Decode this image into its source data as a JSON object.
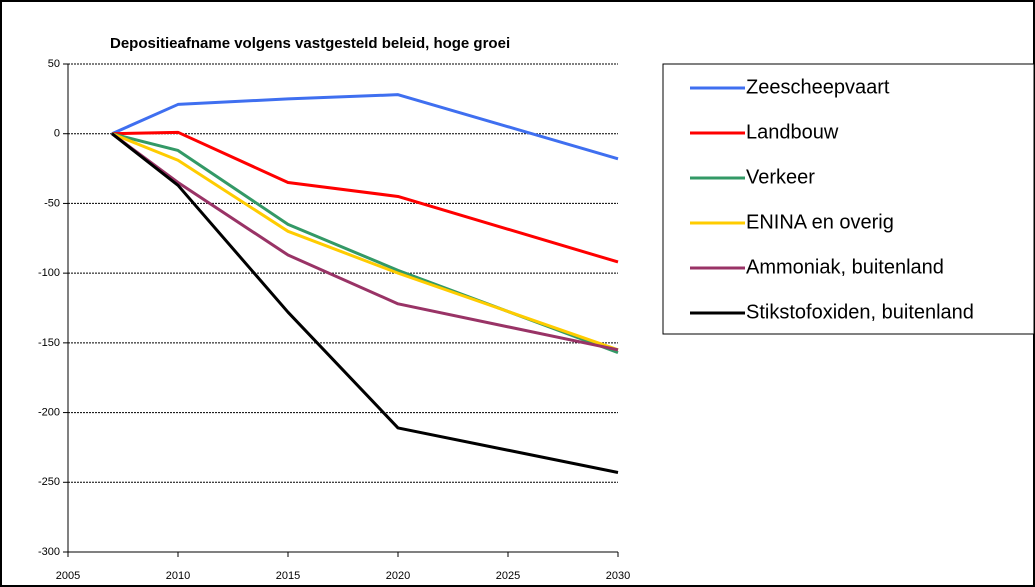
{
  "chart_data": {
    "type": "line",
    "title": "Depositieafname volgens vastgesteld beleid, hoge groei",
    "x": [
      2007,
      2010,
      2015,
      2020,
      2030
    ],
    "series": [
      {
        "name": "Zeescheepvaart",
        "color": "#3f6ff0",
        "values": [
          0,
          21,
          25,
          28,
          -18
        ]
      },
      {
        "name": "Landbouw",
        "color": "#ff0000",
        "values": [
          0,
          1,
          -35,
          -45,
          -92
        ]
      },
      {
        "name": "Verkeer",
        "color": "#339966",
        "values": [
          0,
          -12,
          -65,
          -98,
          -157
        ]
      },
      {
        "name": "ENINA en overig",
        "color": "#ffcc00",
        "values": [
          0,
          -19,
          -70,
          -100,
          -155
        ]
      },
      {
        "name": "Ammoniak, buitenland",
        "color": "#993366",
        "values": [
          0,
          -35,
          -87,
          -122,
          -155
        ]
      },
      {
        "name": "Stikstofoxiden, buitenland",
        "color": "#000000",
        "values": [
          0,
          -37,
          -128,
          -211,
          -243
        ]
      }
    ],
    "xlim": [
      2005,
      2030
    ],
    "xticks": [
      2005,
      2010,
      2015,
      2020,
      2025,
      2030
    ],
    "ylim": [
      -300,
      50
    ],
    "yticks": [
      -300,
      -250,
      -200,
      -150,
      -100,
      -50,
      0,
      50
    ],
    "grid": true,
    "legend": "right"
  }
}
